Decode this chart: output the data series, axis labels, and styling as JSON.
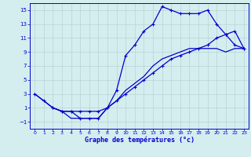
{
  "xlabel": "Graphe des températures (°c)",
  "background_color": "#d4eef0",
  "grid_color": "#b8d4d4",
  "line_color": "#0000cc",
  "xlim": [
    -0.5,
    23.5
  ],
  "ylim": [
    -2,
    16
  ],
  "xticks": [
    0,
    1,
    2,
    3,
    4,
    5,
    6,
    7,
    8,
    9,
    10,
    11,
    12,
    13,
    14,
    15,
    16,
    17,
    18,
    19,
    20,
    21,
    22,
    23
  ],
  "yticks": [
    -1,
    1,
    3,
    5,
    7,
    9,
    11,
    13,
    15
  ],
  "line1_x": [
    0,
    1,
    2,
    3,
    4,
    5,
    6,
    7,
    8,
    9,
    10,
    11,
    12,
    13,
    14,
    15,
    16,
    17,
    18,
    19,
    20,
    21,
    22,
    23
  ],
  "line1_y": [
    3,
    2,
    1,
    0.5,
    0.5,
    -0.5,
    -0.5,
    -0.5,
    1,
    3.5,
    8.5,
    10,
    12,
    13,
    15.5,
    15,
    14.5,
    14.5,
    14.5,
    15,
    13,
    11.5,
    10,
    9.5
  ],
  "line2_x": [
    2,
    3,
    4,
    5,
    6,
    7,
    8,
    9,
    10,
    11,
    12,
    13,
    14,
    15,
    16,
    17,
    18,
    19,
    20,
    21,
    22,
    23
  ],
  "line2_y": [
    1,
    0.5,
    0.5,
    0.5,
    0.5,
    0.5,
    1,
    2,
    3,
    4,
    5,
    6,
    7,
    8,
    8.5,
    9,
    9.5,
    10,
    11,
    11.5,
    12,
    9.5
  ],
  "line3_x": [
    0,
    1,
    2,
    3,
    4,
    5,
    6,
    7,
    8,
    9,
    10,
    11,
    12,
    13,
    14,
    15,
    16,
    17,
    18,
    19,
    20,
    21,
    22,
    23
  ],
  "line3_y": [
    3,
    2,
    1,
    0.5,
    -0.5,
    -0.5,
    -0.5,
    -0.5,
    1,
    2,
    3.5,
    4.5,
    5.5,
    7,
    8,
    8.5,
    9,
    9.5,
    9.5,
    9.5,
    9.5,
    9,
    9.5,
    9.5
  ]
}
